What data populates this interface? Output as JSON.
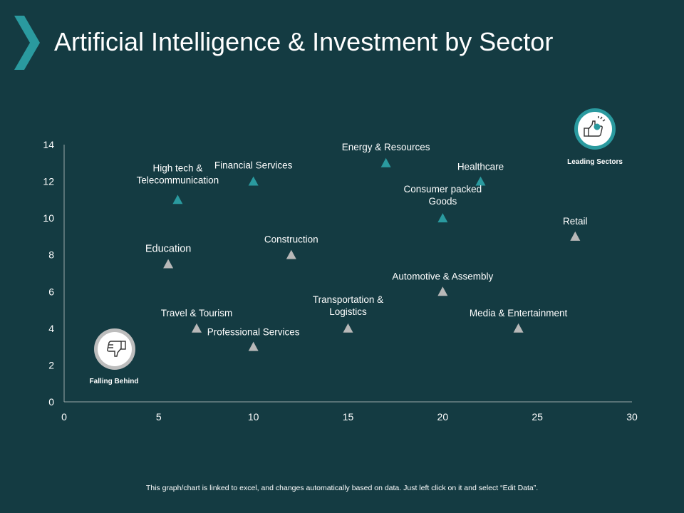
{
  "title": "Artificial Intelligence & Investment by Sector",
  "footnote": "This graph/chart is linked to excel, and changes automatically based on data. Just left click on it and select “Edit Data”.",
  "badges": {
    "leading": {
      "label": "Leading Sectors",
      "icon": "thumbs-up-icon"
    },
    "falling": {
      "label": "Falling Behind",
      "icon": "thumbs-down-icon"
    }
  },
  "colors": {
    "background": "#143b42",
    "leading": "#2a9a9f",
    "other": "#b8b8b8",
    "text": "#ffffff",
    "axis": "#9aa7a8"
  },
  "chart_data": {
    "type": "scatter",
    "title": "",
    "xlabel": "",
    "ylabel": "",
    "xlim": [
      0,
      30
    ],
    "ylim": [
      0,
      14
    ],
    "xticks": [
      0,
      5,
      10,
      15,
      20,
      25,
      30
    ],
    "yticks": [
      0,
      2,
      4,
      6,
      8,
      10,
      12,
      14
    ],
    "grid": false,
    "points": [
      {
        "label": "High tech & Telecommunication",
        "x": 6,
        "y": 11,
        "group": "leading"
      },
      {
        "label": "Financial Services",
        "x": 10,
        "y": 12,
        "group": "leading"
      },
      {
        "label": "Energy & Resources",
        "x": 17,
        "y": 13,
        "group": "leading"
      },
      {
        "label": "Healthcare",
        "x": 22,
        "y": 12,
        "group": "leading"
      },
      {
        "label": "Consumer packed Goods",
        "x": 20,
        "y": 10,
        "group": "leading"
      },
      {
        "label": "Retail",
        "x": 27,
        "y": 9,
        "group": "other"
      },
      {
        "label": "Education",
        "x": 5.5,
        "y": 7.5,
        "group": "other"
      },
      {
        "label": "Construction",
        "x": 12,
        "y": 8,
        "group": "other"
      },
      {
        "label": "Automotive & Assembly",
        "x": 20,
        "y": 6,
        "group": "other"
      },
      {
        "label": "Travel & Tourism",
        "x": 7,
        "y": 4,
        "group": "other"
      },
      {
        "label": "Professional Services",
        "x": 10,
        "y": 3,
        "group": "other"
      },
      {
        "label": "Transportation & Logistics",
        "x": 15,
        "y": 4,
        "group": "other"
      },
      {
        "label": "Media & Entertainment",
        "x": 24,
        "y": 4,
        "group": "other"
      }
    ]
  }
}
